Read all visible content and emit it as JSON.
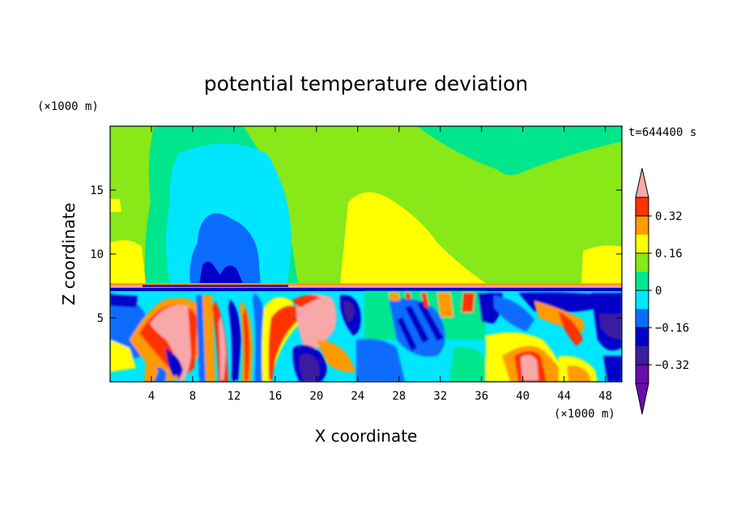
{
  "chart_data": {
    "type": "heatmap",
    "title": "potential temperature deviation",
    "xlabel": "X coordinate",
    "ylabel": "Z coordinate",
    "x_unit": "(×1000 m)",
    "y_unit": "(×1000 m)",
    "time_label": "t=644400 s",
    "xlim": [
      0,
      49.6
    ],
    "ylim": [
      0,
      20
    ],
    "x_ticks": [
      4,
      8,
      12,
      16,
      20,
      24,
      28,
      32,
      36,
      40,
      44,
      48
    ],
    "y_ticks": [
      5,
      10,
      15
    ],
    "colorbar": {
      "levels": [
        -0.4,
        -0.32,
        -0.24,
        -0.16,
        -0.08,
        0,
        0.08,
        0.16,
        0.24,
        0.32,
        0.4
      ],
      "labels": [
        "0.32",
        "0.16",
        "0",
        "−0.16",
        "−0.32"
      ],
      "label_values": [
        0.32,
        0.16,
        0,
        -0.16,
        -0.32
      ],
      "colors_low_to_high": [
        "#6a0dad",
        "#3b1fa0",
        "#0000c8",
        "#0a6cff",
        "#00e6ff",
        "#00e68c",
        "#88e818",
        "#ffff00",
        "#ff9a00",
        "#ff3300",
        "#f8a8a8"
      ],
      "extend": "both"
    }
  }
}
